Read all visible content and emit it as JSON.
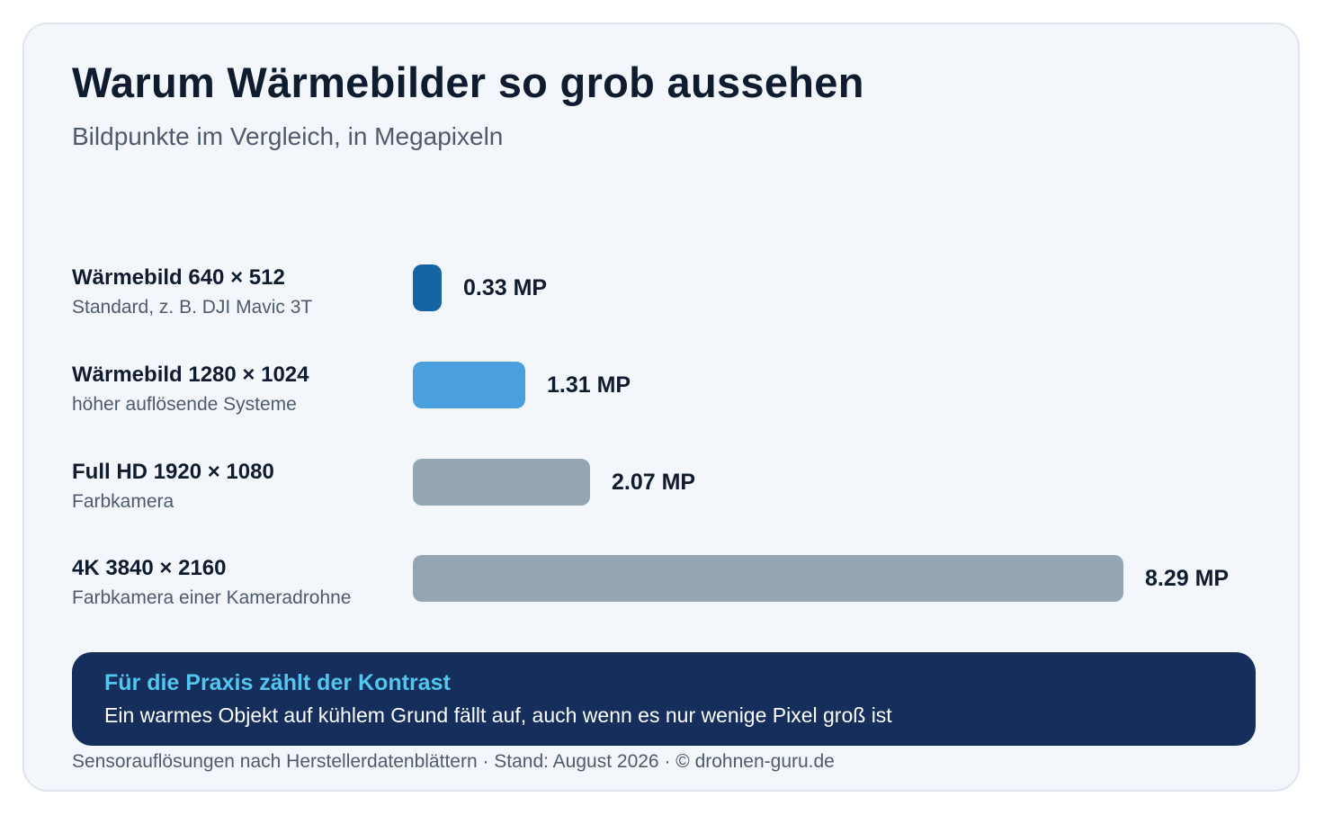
{
  "title": "Warum Wärmebilder so grob aussehen",
  "subtitle": "Bildpunkte im Vergleich, in Megapixeln",
  "colors": {
    "background": "#f3f7fb",
    "thermal_standard": "#1565a5",
    "thermal_high": "#4a9fdf",
    "color_camera": "#94a5b4",
    "callout_bg": "#152e5c",
    "callout_title": "#52c6ee"
  },
  "chart_data": {
    "type": "bar",
    "orientation": "horizontal",
    "categories": [
      "Wärmebild 640 × 512",
      "Wärmebild 1280 × 1024",
      "Full HD 1920 × 1080",
      "4K 3840 × 2160"
    ],
    "values": [
      0.33,
      1.31,
      2.07,
      8.29
    ],
    "unit": "MP",
    "rows": [
      {
        "label": "Wärmebild 640 × 512",
        "sub": "Standard, z. B. DJI Mavic 3T",
        "value": 0.33,
        "value_label": "0.33 MP",
        "color": "#1565a5"
      },
      {
        "label": "Wärmebild 1280 × 1024",
        "sub": "höher auflösende Systeme",
        "value": 1.31,
        "value_label": "1.31 MP",
        "color": "#4a9fdf"
      },
      {
        "label": "Full HD 1920 × 1080",
        "sub": "Farbkamera",
        "value": 2.07,
        "value_label": "2.07 MP",
        "color": "#94a5b4"
      },
      {
        "label": "4K 3840 × 2160",
        "sub": "Farbkamera einer Kameradrohne",
        "value": 8.29,
        "value_label": "8.29 MP",
        "color": "#94a5b4"
      }
    ],
    "xlim": [
      0,
      8.29
    ],
    "grid": false,
    "legend": "none"
  },
  "callout": {
    "title": "Für die Praxis zählt der Kontrast",
    "text": "Ein warmes Objekt auf kühlem Grund fällt auf, auch wenn es nur wenige Pixel groß ist"
  },
  "footer": "Sensorauflösungen nach Herstellerdatenblättern · Stand: August 2026 · © drohnen-guru.de"
}
